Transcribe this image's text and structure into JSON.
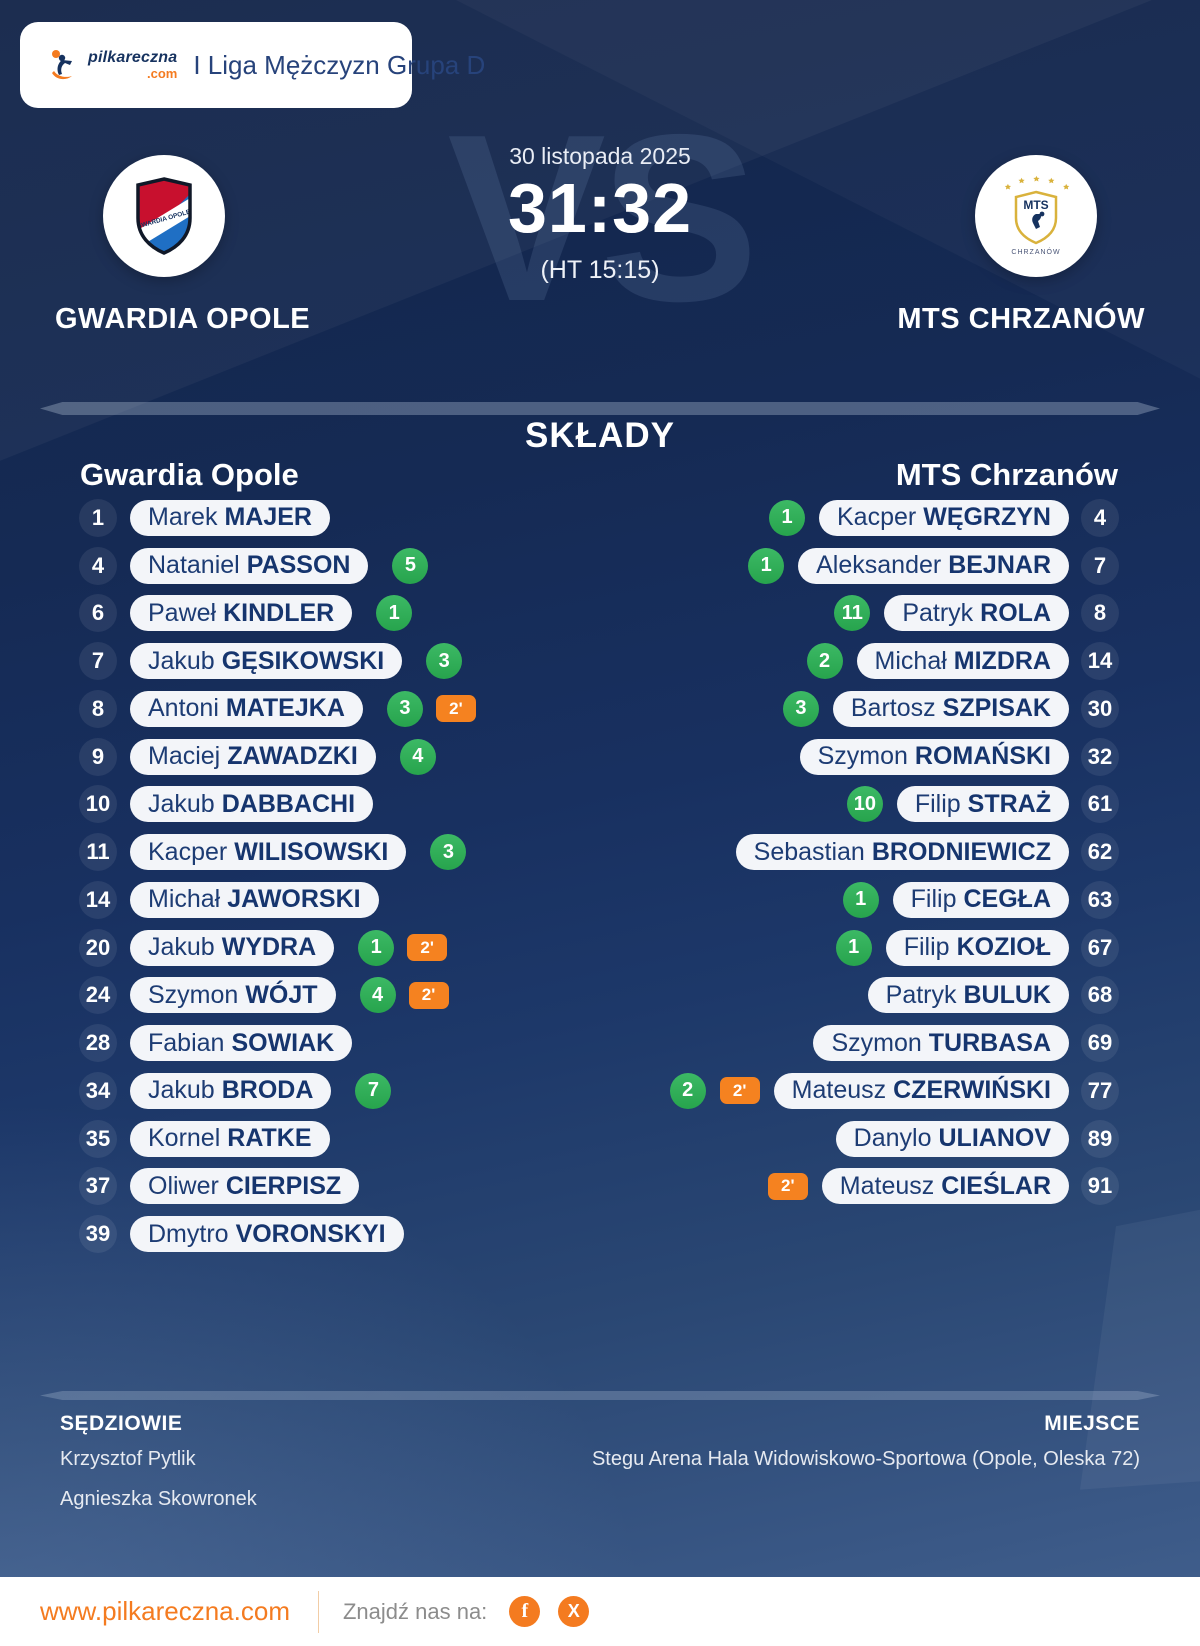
{
  "header": {
    "brand_name": "pilkareczna",
    "brand_tld": ".com",
    "league": "I Liga Mężczyzn Grupa D"
  },
  "match": {
    "date": "30 listopada 2025",
    "score": "31:32",
    "halftime": "(HT 15:15)",
    "vs_watermark": "VS",
    "home_name": "GWARDIA OPOLE",
    "away_name": "MTS CHRZANÓW",
    "home_crest_text": "GWARDIA OPOLE",
    "away_crest_mts": "MTS",
    "away_crest_city": "CHRZANÓW"
  },
  "lineups": {
    "title": "SKŁADY",
    "home_header": "Gwardia Opole",
    "away_header": "MTS Chrzanów",
    "suspension_label": "2'",
    "home_players": [
      {
        "number": "1",
        "first": "Marek",
        "last": "MAJER",
        "goals": null,
        "susp": false
      },
      {
        "number": "4",
        "first": "Nataniel",
        "last": "PASSON",
        "goals": "5",
        "susp": false
      },
      {
        "number": "6",
        "first": "Paweł",
        "last": "KINDLER",
        "goals": "1",
        "susp": false
      },
      {
        "number": "7",
        "first": "Jakub",
        "last": "GĘSIKOWSKI",
        "goals": "3",
        "susp": false
      },
      {
        "number": "8",
        "first": "Antoni",
        "last": "MATEJKA",
        "goals": "3",
        "susp": true
      },
      {
        "number": "9",
        "first": "Maciej",
        "last": "ZAWADZKI",
        "goals": "4",
        "susp": false
      },
      {
        "number": "10",
        "first": "Jakub",
        "last": "DABBACHI",
        "goals": null,
        "susp": false
      },
      {
        "number": "11",
        "first": "Kacper",
        "last": "WILISOWSKI",
        "goals": "3",
        "susp": false
      },
      {
        "number": "14",
        "first": "Michał",
        "last": "JAWORSKI",
        "goals": null,
        "susp": false
      },
      {
        "number": "20",
        "first": "Jakub",
        "last": "WYDRA",
        "goals": "1",
        "susp": true
      },
      {
        "number": "24",
        "first": "Szymon",
        "last": "WÓJT",
        "goals": "4",
        "susp": true
      },
      {
        "number": "28",
        "first": "Fabian",
        "last": "SOWIAK",
        "goals": null,
        "susp": false
      },
      {
        "number": "34",
        "first": "Jakub",
        "last": "BRODA",
        "goals": "7",
        "susp": false
      },
      {
        "number": "35",
        "first": "Kornel",
        "last": "RATKE",
        "goals": null,
        "susp": false
      },
      {
        "number": "37",
        "first": "Oliwer",
        "last": "CIERPISZ",
        "goals": null,
        "susp": false
      },
      {
        "number": "39",
        "first": "Dmytro",
        "last": "VORONSKYI",
        "goals": null,
        "susp": false
      }
    ],
    "away_players": [
      {
        "number": "4",
        "first": "Kacper",
        "last": "WĘGRZYN",
        "goals": "1",
        "susp": false
      },
      {
        "number": "7",
        "first": "Aleksander",
        "last": "BEJNAR",
        "goals": "1",
        "susp": false
      },
      {
        "number": "8",
        "first": "Patryk",
        "last": "ROLA",
        "goals": "11",
        "susp": false
      },
      {
        "number": "14",
        "first": "Michał",
        "last": "MIZDRA",
        "goals": "2",
        "susp": false
      },
      {
        "number": "30",
        "first": "Bartosz",
        "last": "SZPISAK",
        "goals": "3",
        "susp": false
      },
      {
        "number": "32",
        "first": "Szymon",
        "last": "ROMAŃSKI",
        "goals": null,
        "susp": false
      },
      {
        "number": "61",
        "first": "Filip",
        "last": "STRAŻ",
        "goals": "10",
        "susp": false
      },
      {
        "number": "62",
        "first": "Sebastian",
        "last": "BRODNIEWICZ",
        "goals": null,
        "susp": false
      },
      {
        "number": "63",
        "first": "Filip",
        "last": "CEGŁA",
        "goals": "1",
        "susp": false
      },
      {
        "number": "67",
        "first": "Filip",
        "last": "KOZIOŁ",
        "goals": "1",
        "susp": false
      },
      {
        "number": "68",
        "first": "Patryk",
        "last": "BULUK",
        "goals": null,
        "susp": false
      },
      {
        "number": "69",
        "first": "Szymon",
        "last": "TURBASA",
        "goals": null,
        "susp": false
      },
      {
        "number": "77",
        "first": "Mateusz",
        "last": "CZERWIŃSKI",
        "goals": "2",
        "susp": true
      },
      {
        "number": "89",
        "first": "Danylo",
        "last": "ULIANOV",
        "goals": null,
        "susp": false
      },
      {
        "number": "91",
        "first": "Mateusz",
        "last": "CIEŚLAR",
        "goals": null,
        "susp": true
      }
    ]
  },
  "officials": {
    "referees_label": "SĘDZIOWIE",
    "referees": [
      "Krzysztof Pytlik",
      "Agnieszka Skowronek"
    ],
    "venue_label": "MIEJSCE",
    "venue": "Stegu Arena Hala Widowiskowo-Sportowa (Opole, Oleska 72)"
  },
  "footer": {
    "site": "www.pilkareczna.com",
    "find_us": "Znajdź nas na:",
    "facebook_glyph": "f",
    "x_glyph": "X"
  },
  "colors": {
    "accent_orange": "#f47b20",
    "goal_green": "#2fae56",
    "navy_text": "#1d3c74",
    "background_navy": "#152a54"
  }
}
